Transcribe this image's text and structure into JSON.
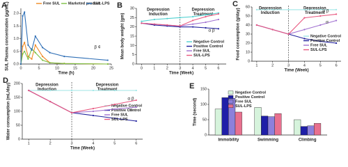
{
  "chart_data": [
    {
      "type": "line",
      "panel_label": "A",
      "y_label": "SUL Plasma concentration (µg/mL)",
      "x_label": "Time (h)",
      "x": [
        0,
        0.5,
        1,
        2,
        3,
        4,
        6,
        8,
        12,
        24
      ],
      "series": [
        {
          "name": "Free SUL",
          "color": "#f08a24",
          "values": [
            0,
            0.7,
            0.85,
            0.3,
            0.2,
            0.75,
            0.3,
            0.05,
            0.02,
            0
          ]
        },
        {
          "name": "Marketed product",
          "color": "#7cc043",
          "values": [
            0,
            0.4,
            0.5,
            0.2,
            0.6,
            0.45,
            0.15,
            0.05,
            0.02,
            0
          ]
        },
        {
          "name": "SUL-LPS",
          "color": "#2f6fb6",
          "values": [
            0,
            1.9,
            2.05,
            0.75,
            0.55,
            1.1,
            0.65,
            0.45,
            0.3,
            0.15
          ]
        }
      ],
      "xlim": [
        0,
        25
      ],
      "xticks": [
        0,
        5,
        10,
        15,
        20,
        25
      ],
      "ylim": [
        0,
        2.2
      ],
      "yticks": [
        {
          "value": 0,
          "label": "0.0"
        },
        {
          "value": 0.5,
          "label": "0.5"
        },
        {
          "value": 1,
          "label": "1.0"
        },
        {
          "value": 1.5,
          "label": "1.5"
        },
        {
          "value": 2,
          "label": "2.0"
        }
      ],
      "annotations": [
        "β ¢"
      ]
    },
    {
      "type": "line",
      "panel_label": "B",
      "y_label": "Mean body weight (gm)",
      "x_label": "Time (Week)",
      "x": [
        0,
        1,
        2,
        3,
        4,
        5,
        6
      ],
      "series": [
        {
          "name": "Negative Control",
          "color": "#4fd0d0",
          "values": [
            23,
            24,
            24.5,
            25,
            25.5,
            26.5,
            27.5
          ]
        },
        {
          "name": "Positive Control",
          "color": "#1f1f9c",
          "values": [
            22,
            21,
            20.5,
            20,
            20,
            19.5,
            19
          ]
        },
        {
          "name": "Free SUL",
          "color": "#a070d0",
          "values": [
            22,
            21.5,
            21,
            20.5,
            21.5,
            22.5,
            24
          ]
        },
        {
          "name": "SUL-LPS",
          "color": "#e8577f",
          "values": [
            22,
            21.5,
            21,
            20.5,
            23.5,
            25.5,
            27
          ]
        }
      ],
      "xlim": [
        -0.4,
        6.6
      ],
      "xticks": [
        0,
        1,
        2,
        3,
        4,
        5,
        6
      ],
      "ylim": [
        0,
        30
      ],
      "yticks": [
        0,
        5,
        10,
        15,
        20,
        25,
        30
      ],
      "vline": 3,
      "phases": [
        [
          "Depression",
          "Induction"
        ],
        [
          "Depression",
          "Treatment"
        ]
      ],
      "annotations": [
        "α β"
      ]
    },
    {
      "type": "line",
      "panel_label": "C",
      "y_label": "Food consumption (g/day)",
      "x_label": "Time (Week)",
      "x": [
        1,
        2,
        3,
        4,
        5,
        6
      ],
      "series": [
        {
          "name": "Negative Control",
          "color": "#9fe6e6",
          "values": [
            57,
            57,
            57,
            57,
            57,
            57
          ]
        },
        {
          "name": "Positive Control",
          "color": "#1f1f9c",
          "values": [
            40,
            35,
            30,
            25,
            22,
            20
          ]
        },
        {
          "name": "Free SUL",
          "color": "#a070d0",
          "values": [
            40,
            35,
            30,
            35,
            40,
            45
          ]
        },
        {
          "name": "SUL-LPS",
          "color": "#e8577f",
          "values": [
            40,
            35,
            30,
            48,
            50,
            52
          ]
        }
      ],
      "xlim": [
        0.7,
        6.3
      ],
      "xticks": [
        1,
        2,
        3,
        4,
        5,
        6
      ],
      "ylim": [
        0,
        60
      ],
      "yticks": [
        0,
        10,
        20,
        30,
        40,
        50,
        60
      ],
      "vline": 3,
      "phases": [
        [
          "Depression",
          "Induction"
        ],
        [
          "Depression",
          "Treatment"
        ]
      ],
      "annotations": [
        "α β",
        "α"
      ]
    },
    {
      "type": "line",
      "panel_label": "D",
      "y_label": "Water consumption (mL/day)",
      "x_label": "Time (Week)",
      "x": [
        1,
        2,
        3,
        4,
        5,
        6
      ],
      "series": [
        {
          "name": "Negative Control",
          "color": "#9fe6e6",
          "values": [
            175,
            175,
            175,
            175,
            175,
            175
          ]
        },
        {
          "name": "Positive Control",
          "color": "#1f1f9c",
          "values": [
            175,
            135,
            95,
            85,
            75,
            65
          ]
        },
        {
          "name": "Free SUL",
          "color": "#a070d0",
          "values": [
            175,
            135,
            95,
            100,
            108,
            115
          ]
        },
        {
          "name": "SUL-LPS",
          "color": "#e8577f",
          "values": [
            175,
            135,
            95,
            110,
            125,
            140
          ]
        }
      ],
      "xlim": [
        0.7,
        6.3
      ],
      "xticks": [
        1,
        2,
        3,
        4,
        5,
        6
      ],
      "ylim": [
        0,
        200
      ],
      "yticks": [
        0,
        50,
        100,
        150,
        200
      ],
      "vline": 3,
      "phases": [
        [
          "Depression",
          "Induction"
        ],
        [
          "Depression",
          "Treatment"
        ]
      ],
      "annotations": [
        "α β",
        "α"
      ]
    },
    {
      "type": "bar",
      "panel_label": "E",
      "y_label": "Time (second)",
      "categories": [
        "Immobility",
        "Swimming",
        "Climbing"
      ],
      "series": [
        {
          "name": "Negative Control",
          "color": "#d6f3dc",
          "values": [
            85,
            90,
            50
          ]
        },
        {
          "name": "Positive Control",
          "color": "#1f1fa8",
          "values": [
            122,
            62,
            28
          ]
        },
        {
          "name": "Free SUL",
          "color": "#8c80dc",
          "values": [
            120,
            60,
            30
          ]
        },
        {
          "name": "SUL-LPS",
          "color": "#e8708f",
          "values": [
            75,
            70,
            38
          ]
        }
      ],
      "ylim": [
        0,
        150
      ],
      "yticks": [
        0,
        50,
        100,
        150
      ]
    }
  ]
}
